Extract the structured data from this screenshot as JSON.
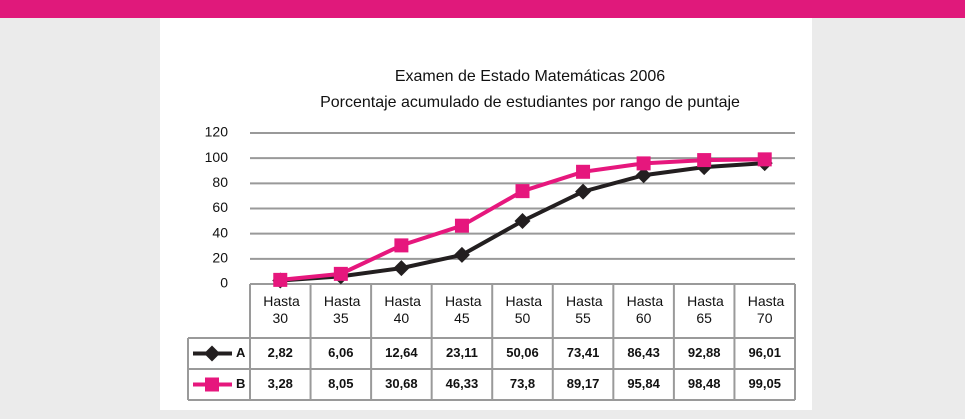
{
  "chart_data": {
    "type": "line",
    "title": "Examen de Estado  Matemáticas 2006",
    "subtitle": "Porcentaje acumulado de estudiantes por rango de puntaje",
    "categories": [
      "Hasta 30",
      "Hasta 35",
      "Hasta 40",
      "Hasta 45",
      "Hasta 50",
      "Hasta 55",
      "Hasta 60",
      "Hasta 65",
      "Hasta 70"
    ],
    "series": [
      {
        "name": "A",
        "color": "#231f20",
        "marker": "diamond",
        "values": [
          2.82,
          6.06,
          12.64,
          23.11,
          50.06,
          73.41,
          86.43,
          92.88,
          96.01
        ],
        "value_labels": [
          "2,82",
          "6,06",
          "12,64",
          "23,11",
          "50,06",
          "73,41",
          "86,43",
          "92,88",
          "96,01"
        ]
      },
      {
        "name": "B",
        "color": "#e6177d",
        "marker": "square",
        "values": [
          3.28,
          8.05,
          30.68,
          46.33,
          73.8,
          89.17,
          95.84,
          98.48,
          99.05
        ],
        "value_labels": [
          "3,28",
          "8,05",
          "30,68",
          "46,33",
          "73,8",
          "89,17",
          "95,84",
          "98,48",
          "99,05"
        ]
      }
    ],
    "ylim": [
      0,
      120
    ],
    "yticks": [
      0,
      20,
      40,
      60,
      80,
      100,
      120
    ],
    "grid": true
  }
}
